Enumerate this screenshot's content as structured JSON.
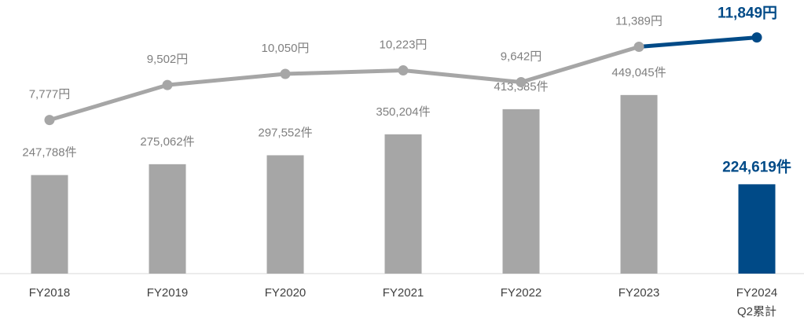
{
  "chart_data": {
    "type": "bar",
    "categories": [
      "FY2018",
      "FY2019",
      "FY2020",
      "FY2021",
      "FY2022",
      "FY2023",
      "FY2024\nQ2累計"
    ],
    "series": [
      {
        "type": "bar",
        "values": [
          247788,
          275062,
          297552,
          350204,
          413385,
          449045,
          224619
        ],
        "value_labels": [
          "247,788件",
          "275,062件",
          "297,552件",
          "350,204件",
          "413,385件",
          "449,045件",
          "224,619件"
        ],
        "colors": [
          "#a6a6a6",
          "#a6a6a6",
          "#a6a6a6",
          "#a6a6a6",
          "#a6a6a6",
          "#a6a6a6",
          "#004a87"
        ],
        "emphasis": [
          false,
          false,
          false,
          false,
          false,
          false,
          true
        ]
      },
      {
        "type": "line",
        "axis": "y2",
        "values": [
          7777,
          9502,
          10050,
          10223,
          9642,
          11389,
          11849
        ],
        "value_labels": [
          "7,777円",
          "9,502円",
          "10,050円",
          "10,223円",
          "9,642円",
          "11,389円",
          "11,849円"
        ],
        "colors": [
          "#a6a6a6",
          "#a6a6a6",
          "#a6a6a6",
          "#a6a6a6",
          "#a6a6a6",
          "#a6a6a6",
          "#004a87"
        ],
        "emphasis": [
          false,
          false,
          false,
          false,
          false,
          false,
          true
        ]
      }
    ],
    "ylim": [
      0,
      680000
    ],
    "y2lim": [
      200,
      13540
    ]
  }
}
